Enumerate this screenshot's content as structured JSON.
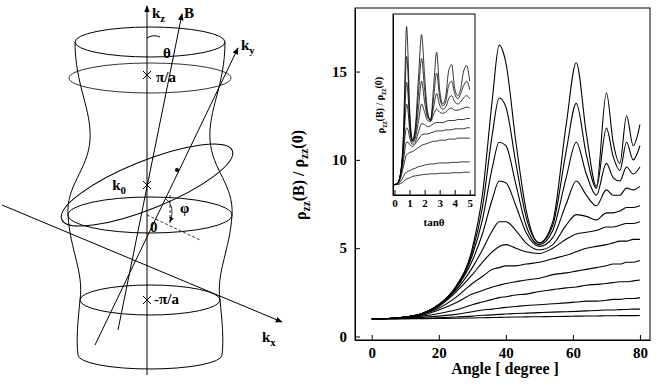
{
  "diagram": {
    "labels": [
      "kz",
      "B",
      "θ",
      "ky",
      "π/a",
      "k0",
      "0",
      "φ",
      "kx",
      "-π/a"
    ]
  },
  "chart_data": [
    {
      "type": "line",
      "x_label": "Angle [ degree ]",
      "y_label": "ρzz(B) / ρzz(0)",
      "color": "#000000",
      "x": [
        0,
        5,
        10,
        15,
        20,
        25,
        30,
        33,
        36,
        38,
        40,
        43,
        46,
        50,
        54,
        58,
        61,
        64,
        67,
        70,
        72,
        74,
        76,
        78,
        80
      ],
      "series": [
        {
          "values": [
            1,
            1.02,
            1.1,
            1.3,
            1.8,
            2.8,
            5.0,
            8.0,
            13.5,
            16.5,
            15.5,
            11.0,
            7.2,
            5.3,
            6.5,
            12.0,
            15.5,
            11.5,
            8.5,
            13.8,
            11.0,
            9.8,
            12.5,
            10.8,
            12.0
          ]
        },
        {
          "values": [
            1,
            1.02,
            1.1,
            1.3,
            1.8,
            2.8,
            4.8,
            7.3,
            11.5,
            13.5,
            13.0,
            9.8,
            6.8,
            5.3,
            6.3,
            10.5,
            13.2,
            10.3,
            8.4,
            11.8,
            10.2,
            9.4,
            11.0,
            10.0,
            10.8
          ]
        },
        {
          "values": [
            1,
            1.02,
            1.1,
            1.3,
            1.8,
            2.7,
            4.6,
            6.6,
            9.6,
            11.0,
            10.8,
            8.6,
            6.3,
            5.2,
            6.0,
            9.0,
            11.0,
            9.2,
            8.0,
            9.8,
            9.0,
            8.8,
            9.6,
            9.2,
            9.6
          ]
        },
        {
          "values": [
            1,
            1.02,
            1.1,
            1.3,
            1.8,
            2.7,
            4.3,
            5.8,
            7.8,
            8.8,
            8.7,
            7.4,
            5.9,
            5.1,
            5.6,
            7.5,
            8.8,
            8.0,
            7.4,
            8.3,
            8.0,
            8.0,
            8.4,
            8.3,
            8.5
          ]
        },
        {
          "values": [
            1,
            1.02,
            1.1,
            1.3,
            1.75,
            2.6,
            3.9,
            4.9,
            6.0,
            6.5,
            6.5,
            6.0,
            5.3,
            4.9,
            5.2,
            6.3,
            6.9,
            6.8,
            6.6,
            7.0,
            7.0,
            7.1,
            7.3,
            7.3,
            7.4
          ]
        },
        {
          "values": [
            1,
            1.02,
            1.1,
            1.28,
            1.7,
            2.5,
            3.5,
            4.2,
            4.8,
            5.1,
            5.2,
            5.0,
            4.8,
            4.7,
            5.0,
            5.5,
            5.8,
            5.9,
            6.0,
            6.2,
            6.2,
            6.3,
            6.4,
            6.4,
            6.5
          ]
        },
        {
          "values": [
            1,
            1.02,
            1.08,
            1.25,
            1.6,
            2.2,
            3.0,
            3.4,
            3.8,
            3.9,
            4.0,
            4.0,
            4.1,
            4.2,
            4.4,
            4.6,
            4.8,
            5.0,
            5.1,
            5.2,
            5.3,
            5.4,
            5.4,
            5.5,
            5.5
          ]
        },
        {
          "values": [
            1,
            1.01,
            1.07,
            1.2,
            1.5,
            1.9,
            2.4,
            2.6,
            2.8,
            2.9,
            3.0,
            3.1,
            3.2,
            3.3,
            3.5,
            3.6,
            3.7,
            3.8,
            3.9,
            4.0,
            4.1,
            4.1,
            4.2,
            4.2,
            4.3
          ]
        },
        {
          "values": [
            1,
            1,
            1.05,
            1.15,
            1.3,
            1.5,
            1.8,
            1.95,
            2.1,
            2.2,
            2.25,
            2.35,
            2.4,
            2.55,
            2.65,
            2.75,
            2.8,
            2.9,
            2.95,
            3.0,
            3.05,
            3.1,
            3.1,
            3.15,
            3.2
          ]
        },
        {
          "values": [
            1,
            1,
            1.03,
            1.08,
            1.15,
            1.25,
            1.4,
            1.5,
            1.55,
            1.6,
            1.65,
            1.7,
            1.75,
            1.8,
            1.85,
            1.9,
            1.95,
            2.0,
            2.0,
            2.05,
            2.1,
            2.1,
            2.15,
            2.15,
            2.2
          ]
        },
        {
          "values": [
            1,
            1,
            1.01,
            1.03,
            1.06,
            1.1,
            1.15,
            1.2,
            1.22,
            1.25,
            1.27,
            1.3,
            1.32,
            1.35,
            1.38,
            1.4,
            1.42,
            1.45,
            1.47,
            1.5,
            1.5,
            1.52,
            1.53,
            1.55,
            1.55
          ]
        },
        {
          "values": [
            1,
            1,
            1,
            1.01,
            1.02,
            1.03,
            1.05,
            1.06,
            1.07,
            1.08,
            1.09,
            1.1,
            1.11,
            1.12,
            1.13,
            1.14,
            1.15,
            1.16,
            1.16,
            1.17,
            1.17,
            1.18,
            1.18,
            1.18,
            1.19
          ]
        }
      ],
      "xlim": [
        -5,
        83
      ],
      "ylim": [
        -0.2,
        18.6
      ],
      "xticks": [
        0,
        20,
        40,
        60,
        80
      ],
      "yticks": [
        0,
        5,
        10,
        15
      ]
    },
    {
      "type": "line",
      "x_label": "tanθ",
      "y_label": "ρzz(B) / ρzz(0)",
      "color": "#000000",
      "x": [
        0,
        0.2,
        0.4,
        0.6,
        0.7,
        0.8,
        0.9,
        1.0,
        1.2,
        1.4,
        1.6,
        1.8,
        2.0,
        2.2,
        2.4,
        2.6,
        2.8,
        3.0,
        3.2,
        3.4,
        3.6,
        3.8,
        4.0,
        4.2,
        4.4,
        4.6,
        4.8,
        5.0
      ],
      "series": [
        {
          "values": [
            1,
            1.15,
            2.1,
            6.2,
            12,
            16.3,
            13.5,
            8.5,
            5.3,
            6.8,
            11.5,
            15.5,
            11.5,
            8.0,
            7.2,
            10.5,
            13.8,
            10.2,
            8.8,
            9.5,
            12.0,
            12.6,
            10.3,
            9.6,
            10.3,
            12.0,
            12.5,
            11.0
          ]
        },
        {
          "values": [
            1,
            1.15,
            2.1,
            5.8,
            10.2,
            13.4,
            11.6,
            7.8,
            5.3,
            6.5,
            10.0,
            13.2,
            10.2,
            7.8,
            7.3,
            9.4,
            11.8,
            9.5,
            8.6,
            9.0,
            10.6,
            11.0,
            9.8,
            9.3,
            9.8,
            10.6,
            11.0,
            10.2
          ]
        },
        {
          "values": [
            1,
            1.15,
            2.0,
            5.3,
            8.5,
            10.9,
            9.7,
            7.0,
            5.2,
            6.0,
            8.5,
            11.0,
            9.0,
            7.5,
            7.2,
            8.5,
            9.8,
            8.7,
            8.3,
            8.5,
            9.3,
            9.6,
            9.0,
            8.8,
            9.0,
            9.4,
            9.6,
            9.3
          ]
        },
        {
          "values": [
            1,
            1.15,
            2.0,
            4.8,
            7.2,
            8.8,
            8.1,
            6.4,
            5.1,
            5.6,
            7.2,
            8.8,
            8.0,
            7.2,
            7.1,
            7.8,
            8.3,
            8.0,
            7.9,
            8.0,
            8.3,
            8.4,
            8.2,
            8.2,
            8.3,
            8.4,
            8.5,
            8.4
          ]
        },
        {
          "values": [
            1,
            1.15,
            1.95,
            4.1,
            5.7,
            6.5,
            6.3,
            5.6,
            4.9,
            5.2,
            6.1,
            6.9,
            6.8,
            6.6,
            6.7,
            6.9,
            7.0,
            7.0,
            7.0,
            7.1,
            7.2,
            7.2,
            7.2,
            7.3,
            7.3,
            7.3,
            7.4,
            7.4
          ]
        },
        {
          "values": [
            1,
            1.15,
            1.9,
            3.4,
            4.5,
            5.1,
            5.1,
            4.9,
            4.7,
            5.0,
            5.4,
            5.8,
            5.9,
            5.9,
            6.0,
            6.1,
            6.2,
            6.2,
            6.2,
            6.3,
            6.3,
            6.3,
            6.4,
            6.4,
            6.4,
            6.4,
            6.5,
            6.5
          ]
        },
        {
          "values": [
            1,
            1.1,
            1.6,
            2.8,
            3.4,
            3.9,
            4.0,
            4.1,
            4.2,
            4.4,
            4.6,
            4.8,
            4.9,
            5.0,
            5.1,
            5.2,
            5.2,
            5.3,
            5.3,
            5.3,
            5.4,
            5.4,
            5.4,
            5.5,
            5.5,
            5.5,
            5.5,
            5.5
          ]
        },
        {
          "values": [
            1,
            1.05,
            1.3,
            1.8,
            2.1,
            2.2,
            2.3,
            2.35,
            2.5,
            2.6,
            2.75,
            2.8,
            2.9,
            2.95,
            3.0,
            3.0,
            3.05,
            3.1,
            3.1,
            3.1,
            3.1,
            3.15,
            3.15,
            3.15,
            3.2,
            3.2,
            3.2,
            3.2
          ]
        },
        {
          "values": [
            1,
            1.02,
            1.1,
            1.3,
            1.45,
            1.55,
            1.6,
            1.65,
            1.8,
            1.85,
            1.9,
            1.95,
            2.0,
            2.0,
            2.05,
            2.05,
            2.05,
            2.1,
            2.1,
            2.1,
            2.1,
            2.15,
            2.15,
            2.15,
            2.15,
            2.2,
            2.2,
            2.2
          ]
        }
      ],
      "xlim": [
        -0.1,
        5.35
      ],
      "ylim": [
        0,
        17.5
      ],
      "xticks": [
        0,
        1,
        2,
        3,
        4,
        5
      ],
      "tick_labels": "x"
    }
  ]
}
